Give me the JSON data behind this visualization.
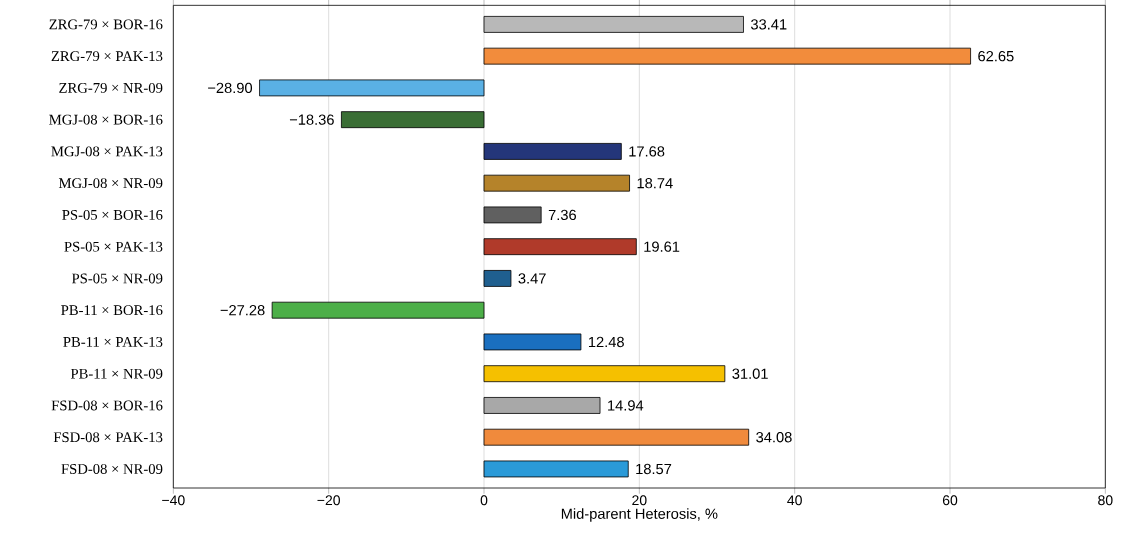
{
  "chart_data": {
    "type": "bar",
    "orientation": "horizontal",
    "xlabel": "Mid-parent Heterosis, %",
    "categories": [
      "ZRG-79 × BOR-16",
      "ZRG-79 × PAK-13",
      "ZRG-79 × NR-09",
      "MGJ-08 × BOR-16",
      "MGJ-08 × PAK-13",
      "MGJ-08 × NR-09",
      "PS-05 × BOR-16",
      "PS-05 × PAK-13",
      "PS-05 × NR-09",
      "PB-11 × BOR-16",
      "PB-11 × PAK-13",
      "PB-11 × NR-09",
      "FSD-08 × BOR-16",
      "FSD-08 × PAK-13",
      "FSD-08 × NR-09"
    ],
    "values": [
      33.41,
      62.65,
      -28.9,
      -18.36,
      17.68,
      18.74,
      7.36,
      19.61,
      3.47,
      -27.28,
      12.48,
      31.01,
      14.94,
      34.08,
      18.57
    ],
    "value_labels": [
      "33.41",
      "62.65",
      "−28.90",
      "−18.36",
      "17.68",
      "18.74",
      "7.36",
      "19.61",
      "3.47",
      "−27.28",
      "12.48",
      "31.01",
      "14.94",
      "34.08",
      "18.57"
    ],
    "colors": [
      "#b8b8b8",
      "#f28c3c",
      "#5ab0e4",
      "#3a6e35",
      "#24367a",
      "#b5832a",
      "#606060",
      "#b03a2a",
      "#1f5f8f",
      "#4caf48",
      "#1a6fbf",
      "#f5c000",
      "#a8a8a8",
      "#f08a3c",
      "#2a9ad8"
    ],
    "xlim": [
      -40,
      80
    ],
    "xticks": [
      {
        "value": -40,
        "label": "−40"
      },
      {
        "value": -20,
        "label": "−20"
      },
      0,
      20,
      40,
      60,
      80
    ],
    "grid": "x"
  }
}
